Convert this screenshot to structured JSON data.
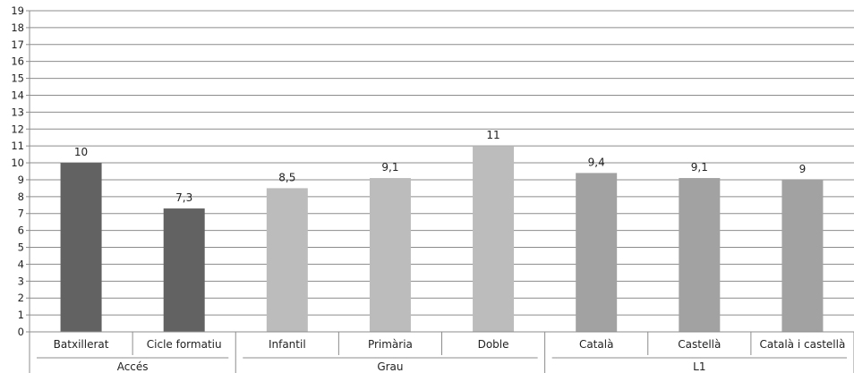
{
  "chart_data": {
    "type": "bar",
    "ylim": [
      0,
      19
    ],
    "ytick_step": 1,
    "grid": true,
    "legend": "none",
    "title": "",
    "xlabel": "",
    "ylabel": "",
    "groups": [
      {
        "name": "Accés",
        "color": "#626262",
        "categories": [
          "Batxillerat",
          "Cicle formatiu"
        ],
        "values": [
          10,
          7.3
        ],
        "labels": [
          "10",
          "7,3"
        ]
      },
      {
        "name": "Grau",
        "color": "#bcbcbc",
        "categories": [
          "Infantil",
          "Primària",
          "Doble"
        ],
        "values": [
          8.5,
          9.1,
          11
        ],
        "labels": [
          "8,5",
          "9,1",
          "11"
        ]
      },
      {
        "name": "L1",
        "color": "#a2a2a2",
        "categories": [
          "Català",
          "Castellà",
          "Català i castellà"
        ],
        "values": [
          9.4,
          9.1,
          9
        ],
        "labels": [
          "9,4",
          "9,1",
          "9"
        ]
      }
    ]
  }
}
